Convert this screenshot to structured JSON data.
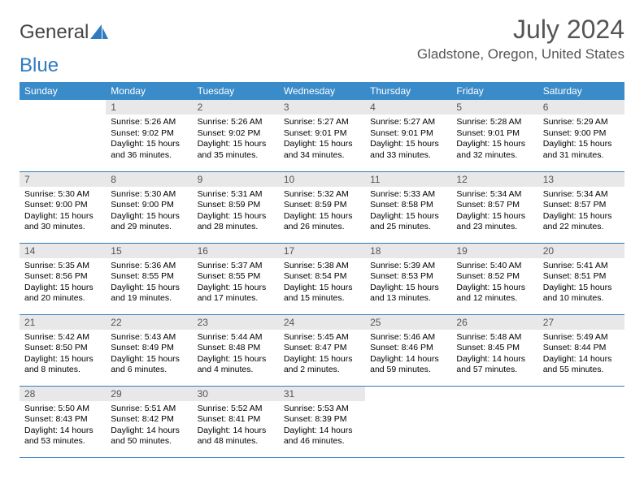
{
  "logo": {
    "text1": "General",
    "text2": "Blue"
  },
  "title": "July 2024",
  "location": "Gladstone, Oregon, United States",
  "colors": {
    "header_bg": "#3a8bc9",
    "daynum_bg": "#e8e8e8",
    "border": "#2f7bbf"
  },
  "weekdays": [
    "Sunday",
    "Monday",
    "Tuesday",
    "Wednesday",
    "Thursday",
    "Friday",
    "Saturday"
  ],
  "start_offset": 1,
  "days": [
    {
      "n": "1",
      "sr": "5:26 AM",
      "ss": "9:02 PM",
      "dl": "15 hours and 36 minutes."
    },
    {
      "n": "2",
      "sr": "5:26 AM",
      "ss": "9:02 PM",
      "dl": "15 hours and 35 minutes."
    },
    {
      "n": "3",
      "sr": "5:27 AM",
      "ss": "9:01 PM",
      "dl": "15 hours and 34 minutes."
    },
    {
      "n": "4",
      "sr": "5:27 AM",
      "ss": "9:01 PM",
      "dl": "15 hours and 33 minutes."
    },
    {
      "n": "5",
      "sr": "5:28 AM",
      "ss": "9:01 PM",
      "dl": "15 hours and 32 minutes."
    },
    {
      "n": "6",
      "sr": "5:29 AM",
      "ss": "9:00 PM",
      "dl": "15 hours and 31 minutes."
    },
    {
      "n": "7",
      "sr": "5:30 AM",
      "ss": "9:00 PM",
      "dl": "15 hours and 30 minutes."
    },
    {
      "n": "8",
      "sr": "5:30 AM",
      "ss": "9:00 PM",
      "dl": "15 hours and 29 minutes."
    },
    {
      "n": "9",
      "sr": "5:31 AM",
      "ss": "8:59 PM",
      "dl": "15 hours and 28 minutes."
    },
    {
      "n": "10",
      "sr": "5:32 AM",
      "ss": "8:59 PM",
      "dl": "15 hours and 26 minutes."
    },
    {
      "n": "11",
      "sr": "5:33 AM",
      "ss": "8:58 PM",
      "dl": "15 hours and 25 minutes."
    },
    {
      "n": "12",
      "sr": "5:34 AM",
      "ss": "8:57 PM",
      "dl": "15 hours and 23 minutes."
    },
    {
      "n": "13",
      "sr": "5:34 AM",
      "ss": "8:57 PM",
      "dl": "15 hours and 22 minutes."
    },
    {
      "n": "14",
      "sr": "5:35 AM",
      "ss": "8:56 PM",
      "dl": "15 hours and 20 minutes."
    },
    {
      "n": "15",
      "sr": "5:36 AM",
      "ss": "8:55 PM",
      "dl": "15 hours and 19 minutes."
    },
    {
      "n": "16",
      "sr": "5:37 AM",
      "ss": "8:55 PM",
      "dl": "15 hours and 17 minutes."
    },
    {
      "n": "17",
      "sr": "5:38 AM",
      "ss": "8:54 PM",
      "dl": "15 hours and 15 minutes."
    },
    {
      "n": "18",
      "sr": "5:39 AM",
      "ss": "8:53 PM",
      "dl": "15 hours and 13 minutes."
    },
    {
      "n": "19",
      "sr": "5:40 AM",
      "ss": "8:52 PM",
      "dl": "15 hours and 12 minutes."
    },
    {
      "n": "20",
      "sr": "5:41 AM",
      "ss": "8:51 PM",
      "dl": "15 hours and 10 minutes."
    },
    {
      "n": "21",
      "sr": "5:42 AM",
      "ss": "8:50 PM",
      "dl": "15 hours and 8 minutes."
    },
    {
      "n": "22",
      "sr": "5:43 AM",
      "ss": "8:49 PM",
      "dl": "15 hours and 6 minutes."
    },
    {
      "n": "23",
      "sr": "5:44 AM",
      "ss": "8:48 PM",
      "dl": "15 hours and 4 minutes."
    },
    {
      "n": "24",
      "sr": "5:45 AM",
      "ss": "8:47 PM",
      "dl": "15 hours and 2 minutes."
    },
    {
      "n": "25",
      "sr": "5:46 AM",
      "ss": "8:46 PM",
      "dl": "14 hours and 59 minutes."
    },
    {
      "n": "26",
      "sr": "5:48 AM",
      "ss": "8:45 PM",
      "dl": "14 hours and 57 minutes."
    },
    {
      "n": "27",
      "sr": "5:49 AM",
      "ss": "8:44 PM",
      "dl": "14 hours and 55 minutes."
    },
    {
      "n": "28",
      "sr": "5:50 AM",
      "ss": "8:43 PM",
      "dl": "14 hours and 53 minutes."
    },
    {
      "n": "29",
      "sr": "5:51 AM",
      "ss": "8:42 PM",
      "dl": "14 hours and 50 minutes."
    },
    {
      "n": "30",
      "sr": "5:52 AM",
      "ss": "8:41 PM",
      "dl": "14 hours and 48 minutes."
    },
    {
      "n": "31",
      "sr": "5:53 AM",
      "ss": "8:39 PM",
      "dl": "14 hours and 46 minutes."
    }
  ],
  "labels": {
    "sunrise": "Sunrise:",
    "sunset": "Sunset:",
    "daylight": "Daylight:"
  }
}
